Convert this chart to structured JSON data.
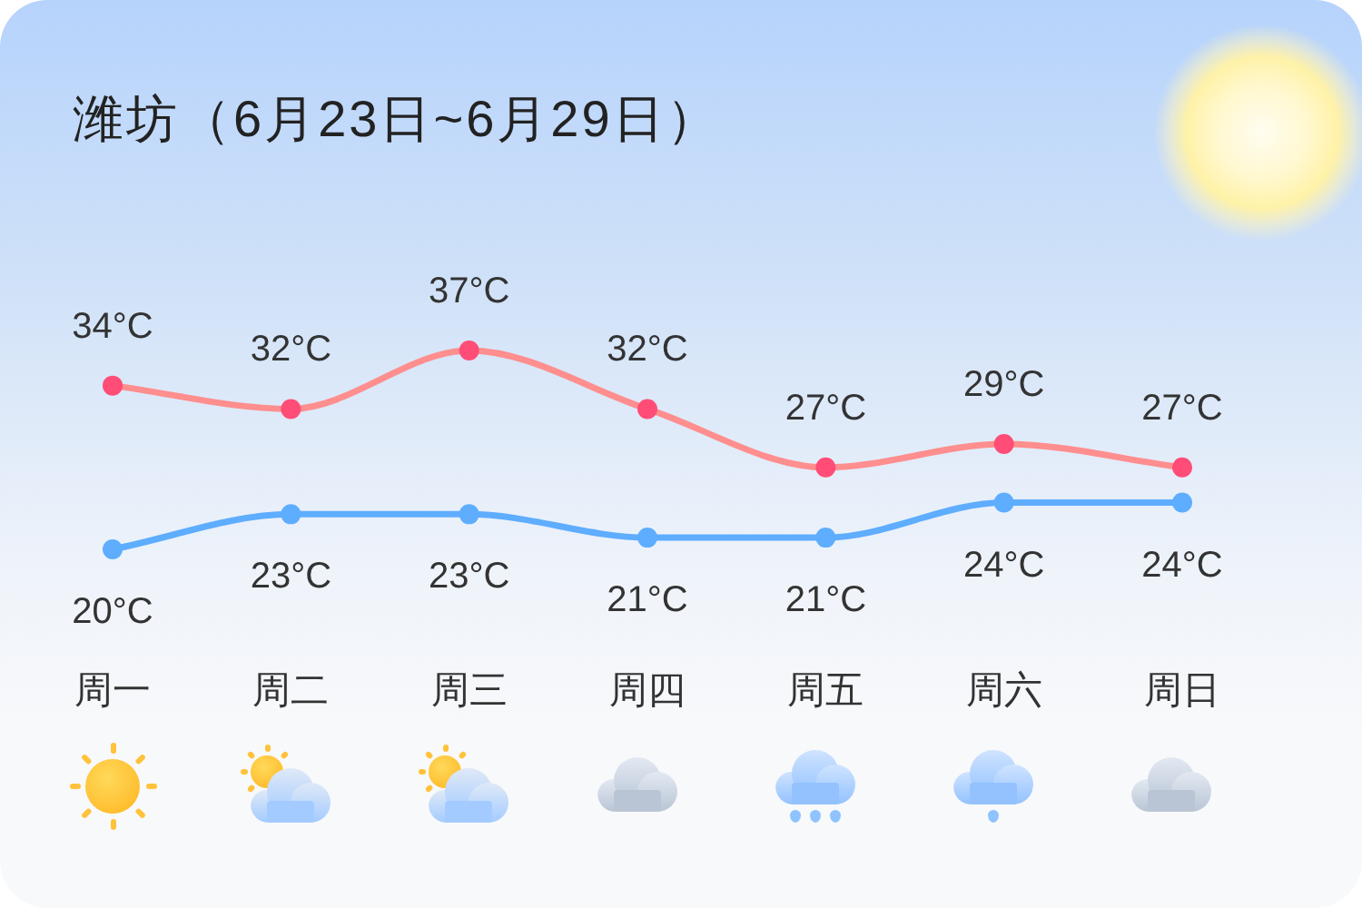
{
  "chart_data": {
    "type": "line",
    "title": "潍坊（6月23日~6月29日）",
    "categories": [
      "周一",
      "周二",
      "周三",
      "周四",
      "周五",
      "周六",
      "周日"
    ],
    "series": [
      {
        "color": "#ff8e8e",
        "colors": [
          "#ff4d77",
          "#ff4d77",
          "#ff4d77",
          "#ff4d77",
          "#ff4d77",
          "#ff4d77",
          "#ff4d77"
        ],
        "values": [
          34,
          32,
          37,
          32,
          27,
          29,
          27
        ],
        "value_labels": [
          "34°C",
          "32°C",
          "37°C",
          "32°C",
          "27°C",
          "29°C",
          "27°C"
        ]
      },
      {
        "color": "#5eadff",
        "values": [
          20,
          23,
          23,
          21,
          21,
          24,
          24
        ],
        "value_labels": [
          "20°C",
          "23°C",
          "23°C",
          "21°C",
          "21°C",
          "24°C",
          "24°C"
        ]
      }
    ],
    "marker": "circle",
    "grid": false,
    "legend": false,
    "tick_labels": "x"
  }
}
